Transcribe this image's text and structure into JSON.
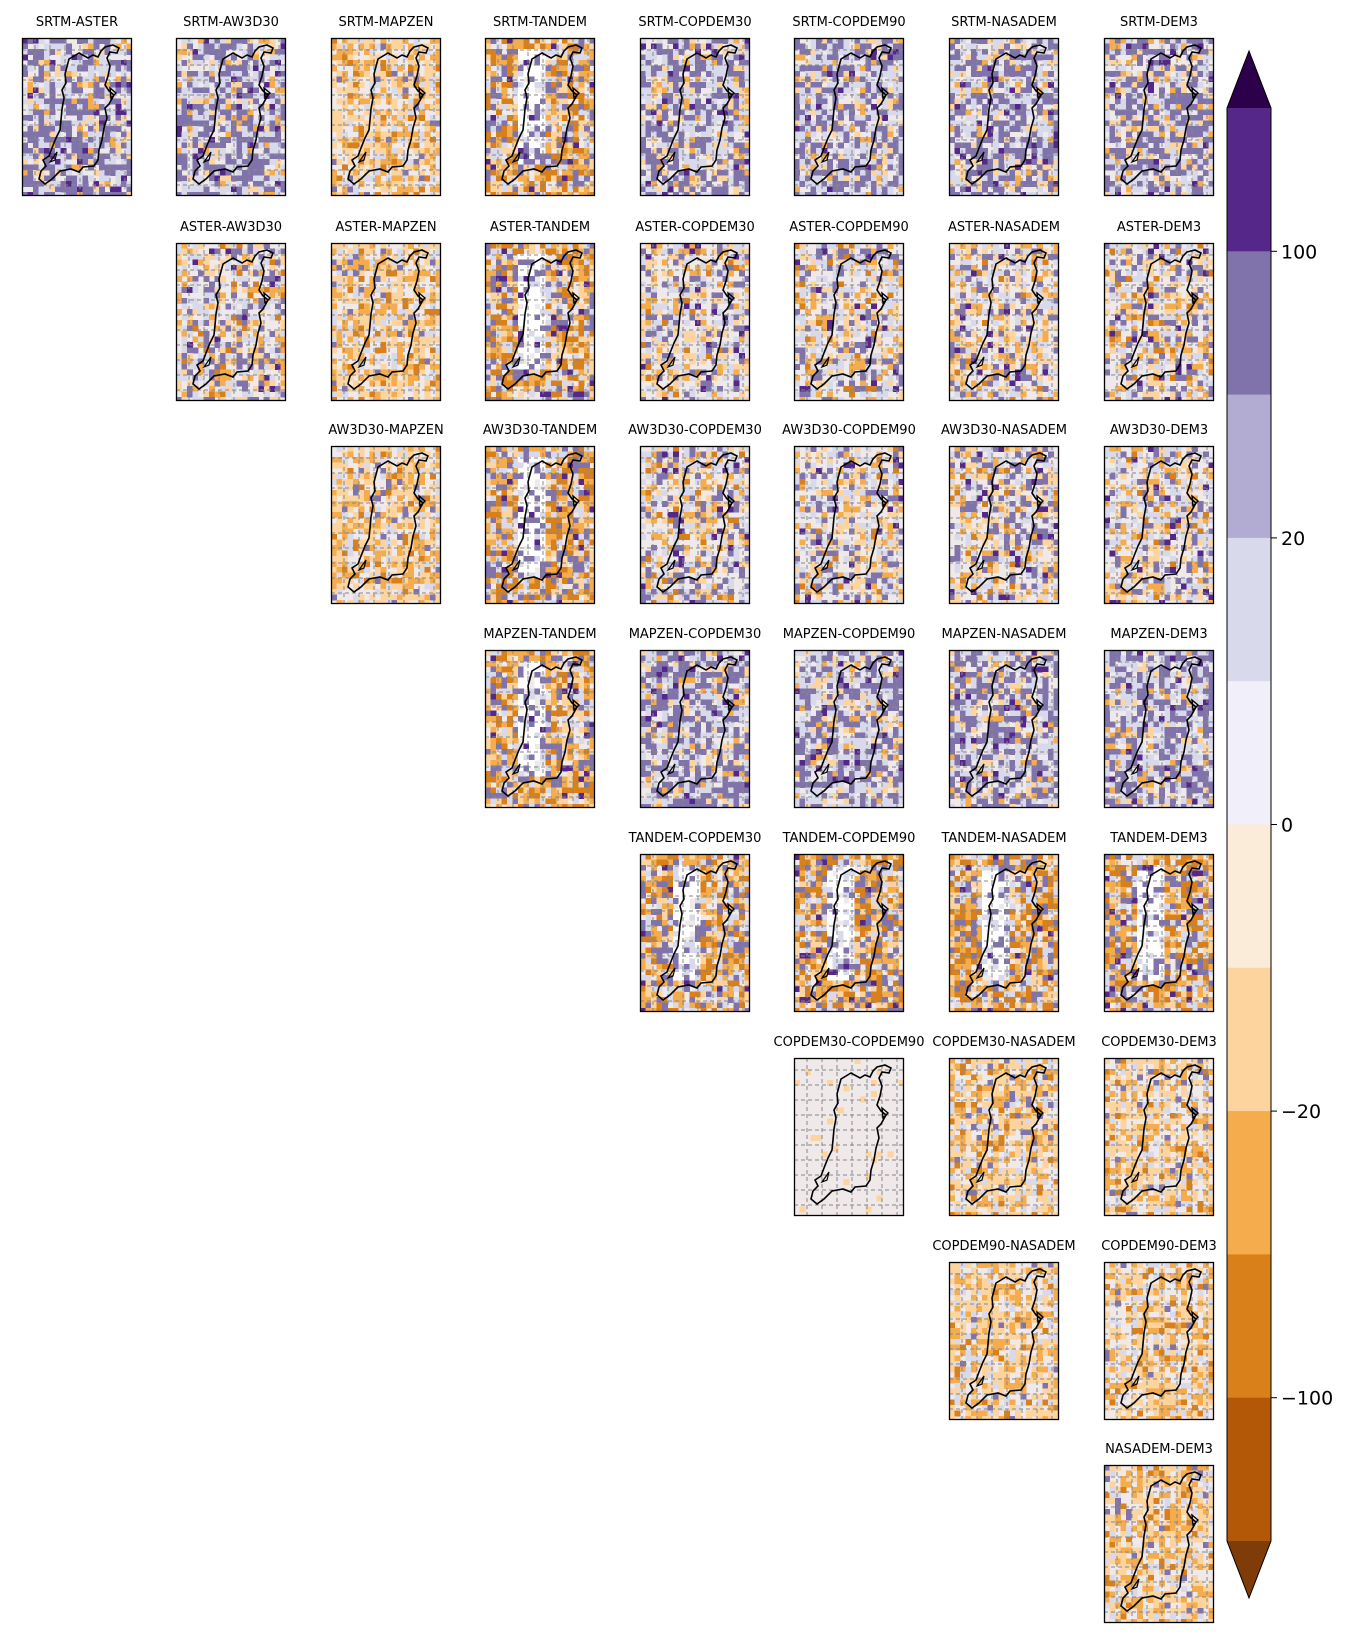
{
  "chart_data": {
    "type": "heatmap",
    "layout": "upper-triangular pairwise difference matrix",
    "datasets": [
      "SRTM",
      "ASTER",
      "AW3D30",
      "MAPZEN",
      "TANDEM",
      "COPDEM30",
      "COPDEM90",
      "NASADEM",
      "DEM3"
    ],
    "panels": [
      {
        "title": "SRTM-ASTER",
        "row": 0,
        "col": 0
      },
      {
        "title": "SRTM-AW3D30",
        "row": 0,
        "col": 1
      },
      {
        "title": "SRTM-MAPZEN",
        "row": 0,
        "col": 2
      },
      {
        "title": "SRTM-TANDEM",
        "row": 0,
        "col": 3
      },
      {
        "title": "SRTM-COPDEM30",
        "row": 0,
        "col": 4
      },
      {
        "title": "SRTM-COPDEM90",
        "row": 0,
        "col": 5
      },
      {
        "title": "SRTM-NASADEM",
        "row": 0,
        "col": 6
      },
      {
        "title": "SRTM-DEM3",
        "row": 0,
        "col": 7
      },
      {
        "title": "ASTER-AW3D30",
        "row": 1,
        "col": 1
      },
      {
        "title": "ASTER-MAPZEN",
        "row": 1,
        "col": 2
      },
      {
        "title": "ASTER-TANDEM",
        "row": 1,
        "col": 3
      },
      {
        "title": "ASTER-COPDEM30",
        "row": 1,
        "col": 4
      },
      {
        "title": "ASTER-COPDEM90",
        "row": 1,
        "col": 5
      },
      {
        "title": "ASTER-NASADEM",
        "row": 1,
        "col": 6
      },
      {
        "title": "ASTER-DEM3",
        "row": 1,
        "col": 7
      },
      {
        "title": "AW3D30-MAPZEN",
        "row": 2,
        "col": 2
      },
      {
        "title": "AW3D30-TANDEM",
        "row": 2,
        "col": 3
      },
      {
        "title": "AW3D30-COPDEM30",
        "row": 2,
        "col": 4
      },
      {
        "title": "AW3D30-COPDEM90",
        "row": 2,
        "col": 5
      },
      {
        "title": "AW3D30-NASADEM",
        "row": 2,
        "col": 6
      },
      {
        "title": "AW3D30-DEM3",
        "row": 2,
        "col": 7
      },
      {
        "title": "MAPZEN-TANDEM",
        "row": 3,
        "col": 3
      },
      {
        "title": "MAPZEN-COPDEM30",
        "row": 3,
        "col": 4
      },
      {
        "title": "MAPZEN-COPDEM90",
        "row": 3,
        "col": 5
      },
      {
        "title": "MAPZEN-NASADEM",
        "row": 3,
        "col": 6
      },
      {
        "title": "MAPZEN-DEM3",
        "row": 3,
        "col": 7
      },
      {
        "title": "TANDEM-COPDEM30",
        "row": 4,
        "col": 4
      },
      {
        "title": "TANDEM-COPDEM90",
        "row": 4,
        "col": 5
      },
      {
        "title": "TANDEM-NASADEM",
        "row": 4,
        "col": 6
      },
      {
        "title": "TANDEM-DEM3",
        "row": 4,
        "col": 7
      },
      {
        "title": "COPDEM30-COPDEM90",
        "row": 5,
        "col": 5
      },
      {
        "title": "COPDEM30-NASADEM",
        "row": 5,
        "col": 6
      },
      {
        "title": "COPDEM30-DEM3",
        "row": 5,
        "col": 7
      },
      {
        "title": "COPDEM90-NASADEM",
        "row": 6,
        "col": 6
      },
      {
        "title": "COPDEM90-DEM3",
        "row": 6,
        "col": 7
      },
      {
        "title": "NASADEM-DEM3",
        "row": 7,
        "col": 7
      }
    ],
    "colorbar": {
      "scale": "symmetric log",
      "extend": "both",
      "tick_labels": [
        "100",
        "20",
        "0",
        "−20",
        "−100"
      ],
      "tick_values": [
        100,
        20,
        0,
        -20,
        -100
      ],
      "colors": [
        "#2d004b",
        "#542788",
        "#8073ac",
        "#b2abd2",
        "#d8daeb",
        "#f0effa",
        "#fbebd9",
        "#fdd49e",
        "#f4ac4c",
        "#d9801b",
        "#b35806",
        "#7f3b08"
      ]
    },
    "colors": {
      "strong_positive": "#542788",
      "positive": "#8073ac",
      "weak_positive": "#d8daeb",
      "near_zero": "#efe9ea",
      "weak_negative": "#fdd49e",
      "negative": "#f4ac4c",
      "strong_negative": "#d9801b",
      "no_data": "#ffffff",
      "outline": "#000000",
      "grid": "#888888"
    }
  }
}
